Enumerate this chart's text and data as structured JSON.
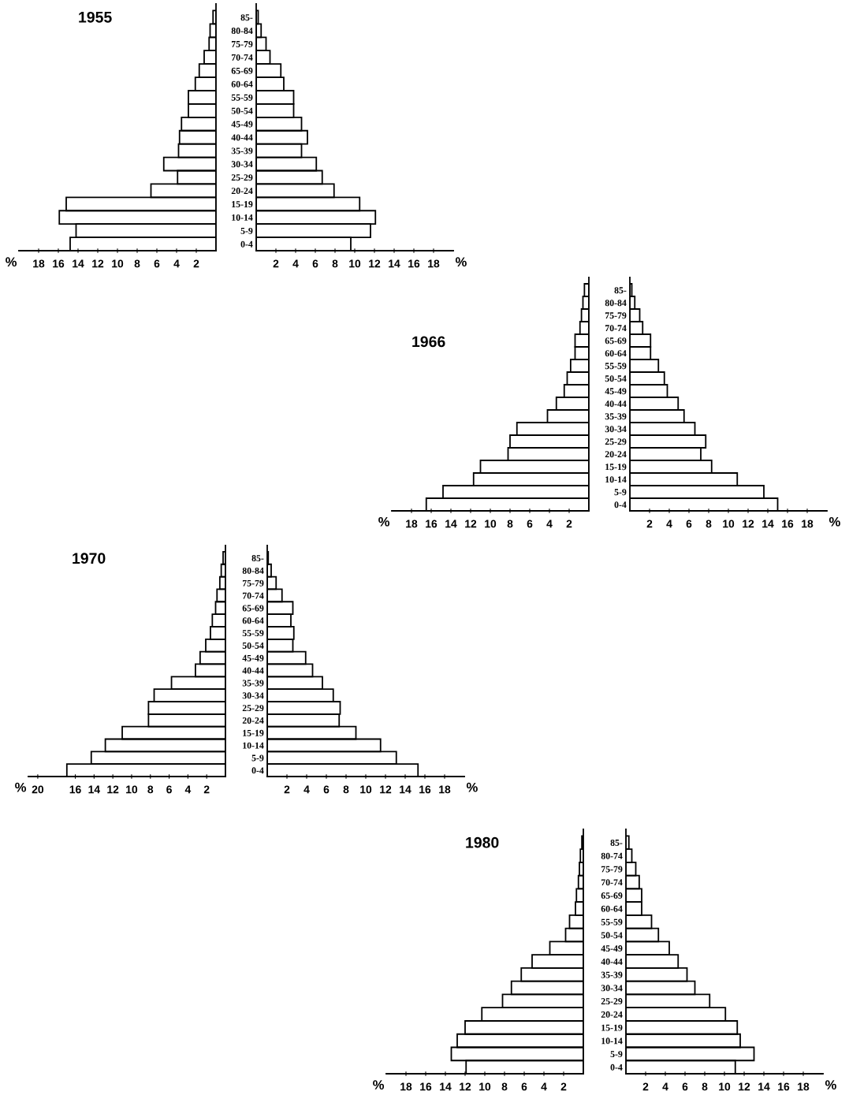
{
  "chart_data": [
    {
      "type": "bar",
      "orientation": "horizontal",
      "title": "1955",
      "xlabel": "%",
      "color": "#000000",
      "tick_labels": "x",
      "categories": [
        null,
        null,
        null,
        null,
        null,
        null,
        null,
        null,
        null,
        null,
        null,
        null,
        null,
        null,
        null,
        null,
        null,
        null
      ],
      "values": [
        0.3,
        0.6,
        0.7,
        1.2,
        1.7,
        2.1,
        2.8,
        2.8,
        3.5,
        3.7,
        3.8,
        5.3,
        3.9,
        6.6,
        15.2,
        15.9,
        14.2,
        14.8
      ],
      "xlim": [
        20,
        0
      ],
      "xticks": [
        18,
        16,
        14,
        12,
        10,
        8,
        6,
        4,
        2
      ]
    },
    {
      "type": "bar",
      "orientation": "horizontal",
      "xlabel": "%",
      "color": "#000000",
      "categories": [
        "85-",
        "80-84",
        "75-79",
        "70-74",
        "65-69",
        "60-64",
        "55-59",
        "50-54",
        "45-49",
        "40-44",
        "35-39",
        "30-34",
        "25-29",
        "20-24",
        "15-19",
        "10-14",
        "5-9",
        "0-4"
      ],
      "values": [
        0.2,
        0.5,
        1.0,
        1.4,
        2.5,
        2.8,
        3.8,
        3.8,
        4.6,
        5.2,
        4.6,
        6.1,
        6.7,
        7.9,
        10.5,
        12.1,
        11.6,
        9.6
      ],
      "xlim": [
        0,
        20
      ],
      "xticks": [
        2,
        4,
        6,
        8,
        10,
        12,
        14,
        16,
        18
      ]
    },
    {
      "type": "bar",
      "orientation": "horizontal",
      "title": "1966",
      "xlabel": "%",
      "color": "#000000",
      "tick_labels": "x",
      "categories": [
        null,
        null,
        null,
        null,
        null,
        null,
        null,
        null,
        null,
        null,
        null,
        null,
        null,
        null,
        null,
        null,
        null,
        null
      ],
      "values": [
        0.45,
        0.6,
        0.75,
        0.9,
        1.4,
        1.4,
        1.85,
        2.2,
        2.5,
        3.3,
        4.2,
        7.3,
        8.0,
        8.2,
        11.0,
        11.7,
        14.8,
        16.5
      ],
      "xlim": [
        20,
        0
      ],
      "xticks": [
        18,
        16,
        14,
        12,
        10,
        8,
        6,
        4,
        2
      ]
    },
    {
      "type": "bar",
      "orientation": "horizontal",
      "xlabel": "%",
      "color": "#000000",
      "categories": [
        "85-",
        "80-84",
        "75-79",
        "70-74",
        "65-69",
        "60-64",
        "55-59",
        "50-54",
        "45-49",
        "40-44",
        "35-39",
        "30-34",
        "25-29",
        "20-24",
        "15-19",
        "10-14",
        "5-9",
        "0-4"
      ],
      "values": [
        0.2,
        0.5,
        1.0,
        1.3,
        2.1,
        2.1,
        2.9,
        3.5,
        3.8,
        4.9,
        5.5,
        6.6,
        7.7,
        7.2,
        8.3,
        10.9,
        13.6,
        15.0
      ],
      "xlim": [
        0,
        20
      ],
      "xticks": [
        2,
        4,
        6,
        8,
        10,
        12,
        14,
        16,
        18
      ]
    },
    {
      "type": "bar",
      "orientation": "horizontal",
      "title": "1970",
      "xlabel": "%",
      "color": "#000000",
      "tick_labels": "x",
      "categories": [
        null,
        null,
        null,
        null,
        null,
        null,
        null,
        null,
        null,
        null,
        null,
        null,
        null,
        null,
        null,
        null,
        null,
        null
      ],
      "values": [
        0.25,
        0.45,
        0.6,
        0.9,
        1.05,
        1.4,
        1.6,
        2.1,
        2.7,
        3.2,
        5.75,
        7.6,
        8.2,
        8.2,
        11.0,
        12.8,
        14.3,
        16.9
      ],
      "xlim": [
        21,
        0
      ],
      "xticks": [
        20,
        16,
        14,
        12,
        10,
        8,
        6,
        4,
        2
      ]
    },
    {
      "type": "bar",
      "orientation": "horizontal",
      "xlabel": "%",
      "color": "#000000",
      "categories": [
        "85-",
        "80-84",
        "75-79",
        "70-74",
        "65-69",
        "60-64",
        "55-59",
        "50-54",
        "45-49",
        "40-44",
        "35-39",
        "30-34",
        "25-29",
        "20-24",
        "15-19",
        "10-14",
        "5-9",
        "0-4"
      ],
      "values": [
        0.1,
        0.4,
        0.9,
        1.5,
        2.6,
        2.4,
        2.7,
        2.6,
        3.9,
        4.6,
        5.6,
        6.7,
        7.4,
        7.3,
        9.0,
        11.5,
        13.1,
        15.3
      ],
      "xlim": [
        0,
        20
      ],
      "xticks": [
        2,
        4,
        6,
        8,
        10,
        12,
        14,
        16,
        18
      ]
    },
    {
      "type": "bar",
      "orientation": "horizontal",
      "title": "1980",
      "xlabel": "%",
      "color": "#000000",
      "tick_labels": "x",
      "categories": [
        null,
        null,
        null,
        null,
        null,
        null,
        null,
        null,
        null,
        null,
        null,
        null,
        null,
        null,
        null,
        null,
        null,
        null
      ],
      "values": [
        0.15,
        0.3,
        0.4,
        0.5,
        0.7,
        0.8,
        1.4,
        1.8,
        3.4,
        5.2,
        6.3,
        7.3,
        8.2,
        10.3,
        12.0,
        12.8,
        13.4,
        11.9
      ],
      "xlim": [
        20,
        0
      ],
      "xticks": [
        18,
        16,
        14,
        12,
        10,
        8,
        6,
        4,
        2
      ]
    },
    {
      "type": "bar",
      "orientation": "horizontal",
      "xlabel": "%",
      "color": "#000000",
      "categories": [
        "85-",
        "80-74",
        "75-79",
        "70-74",
        "65-69",
        "60-64",
        "55-59",
        "50-54",
        "45-49",
        "40-44",
        "35-39",
        "30-34",
        "25-29",
        "20-24",
        "15-19",
        "10-14",
        "5-9",
        "0-4"
      ],
      "values": [
        0.3,
        0.6,
        1.0,
        1.35,
        1.6,
        1.6,
        2.6,
        3.3,
        4.4,
        5.3,
        6.2,
        7.0,
        8.5,
        10.1,
        11.3,
        11.6,
        13.0,
        11.1
      ],
      "xlim": [
        0,
        20
      ],
      "xticks": [
        2,
        4,
        6,
        8,
        10,
        12,
        14,
        16,
        18
      ]
    }
  ]
}
